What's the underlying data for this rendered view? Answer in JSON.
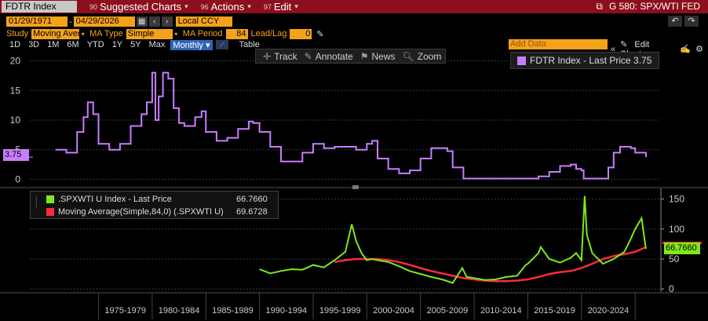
{
  "header": {
    "ticker": "FDTR Index",
    "menus": [
      {
        "num": "90",
        "label": "Suggested Charts"
      },
      {
        "num": "96",
        "label": "Actions"
      },
      {
        "num": "97",
        "label": "Edit"
      }
    ],
    "chart_id": "G 580: SPX/WTI FED"
  },
  "controls": {
    "start_date": "01/29/1971",
    "end_date": "04/29/2026",
    "currency": "Local CCY",
    "study_label": "Study",
    "study_value": "Moving Aver",
    "ma_type_label": "MA Type",
    "ma_type_value": "Simple",
    "ma_period_label": "MA Period",
    "ma_period_value": "84",
    "lead_lag_label": "Lead/Lag",
    "lead_lag_value": "0",
    "periods": [
      "1D",
      "3D",
      "1M",
      "6M",
      "YTD",
      "1Y",
      "5Y",
      "Max"
    ],
    "frequency": "Monthly",
    "table_label": "Table",
    "add_data_placeholder": "Add Data",
    "edit_chart_label": "Edit Chart"
  },
  "toolbar": {
    "track": "Track",
    "annotate": "Annotate",
    "news": "News",
    "zoom": "Zoom"
  },
  "legends": {
    "upper": {
      "label": "FDTR Index - Last Price",
      "value": "3.75",
      "color": "#c77dff"
    },
    "lower": [
      {
        "label": ".SPXWTI U Index - Last Price",
        "value": "66.7660",
        "color": "#7fe81b"
      },
      {
        "label": "Moving Average(Simple,84,0) (.SPXWTI U)",
        "value": "69.6728",
        "color": "#ff2a3c"
      }
    ]
  },
  "tags": {
    "upper_last": "3.75",
    "lower_last": "66.7660"
  },
  "chart_data": [
    {
      "type": "line",
      "title": "FDTR Index - Last Price",
      "ylim": [
        -1,
        21
      ],
      "yticks": [
        0,
        5,
        10,
        15,
        20
      ],
      "x": [
        1971,
        1972,
        1973,
        1973.6,
        1974,
        1974.5,
        1975,
        1976,
        1977,
        1978,
        1979,
        1979.5,
        1980,
        1980.3,
        1980.6,
        1981,
        1981.5,
        1982,
        1982.5,
        1983,
        1984,
        1984.6,
        1985,
        1986,
        1987,
        1988,
        1989,
        1989.4,
        1990,
        1991,
        1992,
        1993,
        1994,
        1995,
        1996,
        1997,
        1998,
        1999,
        2000,
        2000.5,
        2001,
        2002,
        2003,
        2004,
        2005,
        2006,
        2007,
        2007.5,
        2008,
        2009,
        2015,
        2016,
        2017,
        2018,
        2019,
        2019.5,
        2020,
        2020.2,
        2022,
        2022.5,
        2023,
        2023.6,
        2024,
        2024.6,
        2025,
        2025.5,
        2026
      ],
      "values": [
        5,
        4.5,
        8,
        10.5,
        13,
        11,
        6,
        5,
        6,
        9,
        11,
        13,
        18,
        10,
        14,
        18,
        17,
        12,
        9.5,
        9,
        10.5,
        11.5,
        8,
        6.5,
        7,
        8.5,
        9.75,
        9.5,
        8,
        5.5,
        3,
        3,
        4.5,
        6,
        5.25,
        5.5,
        5.5,
        5,
        6,
        6.5,
        3.5,
        1.75,
        1,
        1.5,
        3.5,
        5.25,
        5.25,
        4.75,
        2,
        0.125,
        0.125,
        0.5,
        1.25,
        2.25,
        2.5,
        1.75,
        1.5,
        0.125,
        0.125,
        2,
        4.5,
        5.5,
        5.5,
        5.25,
        4.5,
        4.5,
        3.75
      ]
    },
    {
      "type": "line",
      "title": ".SPXWTI U Index",
      "ylim": [
        -5,
        160
      ],
      "yticks": [
        0,
        50,
        100,
        150
      ],
      "xtick_labels": [
        "1975-1979",
        "1980-1984",
        "1985-1989",
        "1990-1994",
        "1995-1999",
        "2000-2004",
        "2005-2009",
        "2010-2014",
        "2015-2019",
        "2020-2024"
      ],
      "series": [
        {
          "name": ".SPXWTI U Index - Last Price",
          "x": [
            1990,
            1991,
            1992,
            1993,
            1994,
            1995,
            1996,
            1997,
            1998,
            1998.6,
            1999,
            1999.5,
            2000,
            2000.5,
            2001,
            2002,
            2003,
            2004,
            2005,
            2006,
            2007,
            2008,
            2008.9,
            2009.3,
            2010,
            2011,
            2012,
            2013,
            2014,
            2014.8,
            2015,
            2016,
            2016.2,
            2017,
            2018,
            2019,
            2019.5,
            2020,
            2020.3,
            2020.5,
            2021,
            2022,
            2023,
            2024,
            2024.5,
            2025,
            2025.6,
            2026
          ],
          "values": [
            33,
            26,
            30,
            33,
            32,
            40,
            36,
            48,
            62,
            108,
            80,
            60,
            48,
            50,
            48,
            45,
            38,
            30,
            25,
            20,
            16,
            10,
            35,
            20,
            18,
            15,
            16,
            20,
            22,
            40,
            42,
            60,
            70,
            50,
            44,
            52,
            60,
            48,
            155,
            90,
            60,
            42,
            50,
            62,
            80,
            100,
            118,
            67
          ]
        },
        {
          "name": "Moving Average(Simple,84,0) (.SPXWTI U)",
          "x": [
            1997,
            1998,
            1999,
            2000,
            2001,
            2002,
            2003,
            2004,
            2005,
            2006,
            2007,
            2008,
            2009,
            2010,
            2011,
            2012,
            2013,
            2014,
            2015,
            2016,
            2017,
            2018,
            2019,
            2020,
            2021,
            2022,
            2023,
            2024,
            2025,
            2026
          ],
          "values": [
            45,
            48,
            50,
            50,
            50,
            48,
            45,
            40,
            35,
            30,
            26,
            22,
            18,
            16,
            14,
            13,
            13,
            14,
            16,
            20,
            25,
            28,
            30,
            35,
            42,
            50,
            55,
            58,
            62,
            69.6728
          ]
        }
      ]
    }
  ]
}
